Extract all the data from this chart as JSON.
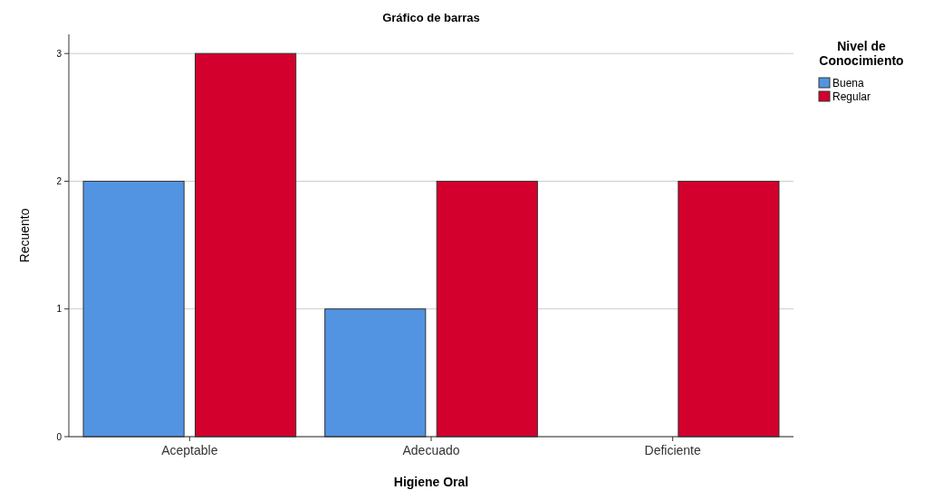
{
  "chart_data": {
    "type": "bar",
    "title": "Gráfico de barras",
    "xlabel": "Higiene Oral",
    "ylabel": "Recuento",
    "legend_title": "Nivel de Conocimiento",
    "categories": [
      "Aceptable",
      "Adecuado",
      "Deficiente"
    ],
    "series": [
      {
        "name": "Buena",
        "color": "#5294e2",
        "values": [
          2,
          1,
          0
        ]
      },
      {
        "name": "Regular",
        "color": "#d3002d",
        "values": [
          3,
          2,
          2
        ]
      }
    ],
    "ylim": [
      0,
      3.15
    ],
    "yticks": [
      0,
      1,
      2,
      3
    ],
    "grid": "y",
    "legend": "top right"
  }
}
